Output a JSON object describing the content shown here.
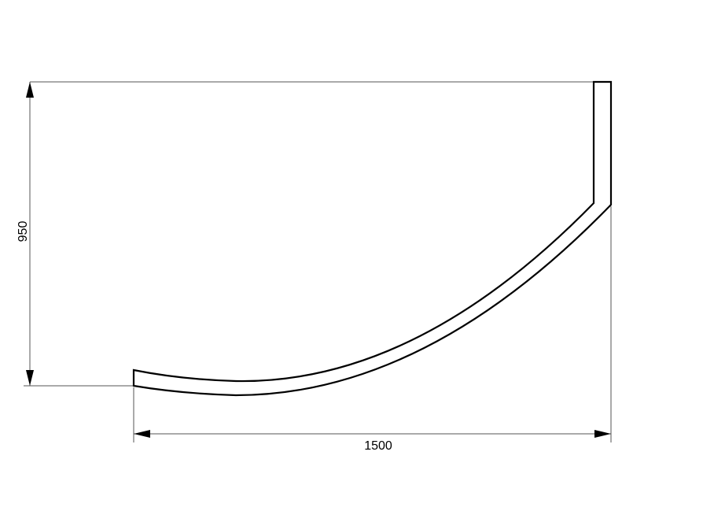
{
  "drawing": {
    "height_dimension": "950",
    "width_dimension": "1500",
    "line_color": "#000000",
    "dimension_line_color": "#555555"
  }
}
